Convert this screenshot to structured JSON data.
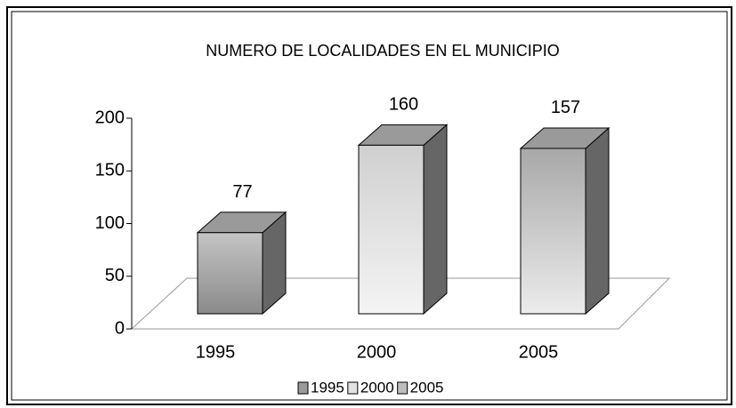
{
  "chart_data": {
    "type": "bar3d",
    "title": "NUMERO DE LOCALIDADES EN EL MUNICIPIO",
    "categories": [
      "1995",
      "2000",
      "2005"
    ],
    "values": [
      77,
      160,
      157
    ],
    "colors": [
      "#9a9a9a",
      "#e2e2e2",
      "#bdbdbd"
    ],
    "ylim": [
      0,
      200
    ],
    "yticks": [
      0,
      50,
      100,
      150,
      200
    ],
    "legend": "bottom"
  }
}
